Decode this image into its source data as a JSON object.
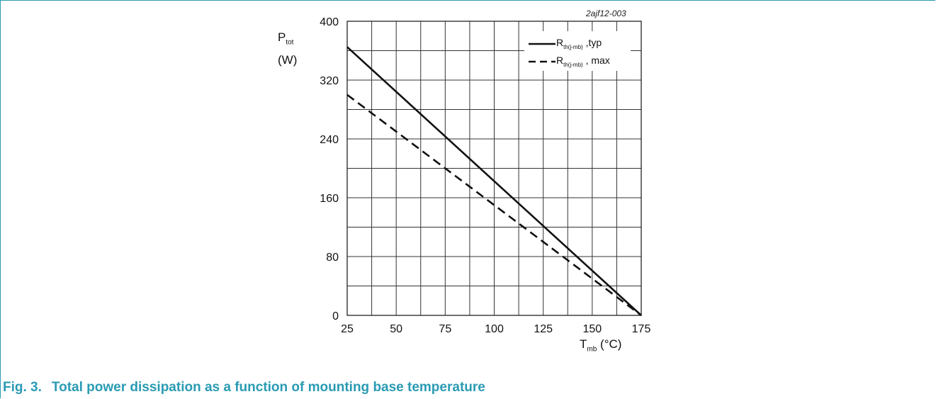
{
  "figure": {
    "id": "2ajf12-003",
    "caption_number": "Fig. 3.",
    "caption_text": "Total power dissipation as a function of mounting base temperature",
    "accent_color": "#2a9bb3"
  },
  "chart_data": {
    "type": "line",
    "title": "",
    "ylabel": {
      "symbol": "P",
      "subscript": "tot",
      "unit": "(W)"
    },
    "xlabel": {
      "symbol": "T",
      "subscript": "mb",
      "unit": "(°C)"
    },
    "xlim": [
      25,
      175
    ],
    "ylim": [
      0,
      400
    ],
    "xticks": [
      25,
      50,
      75,
      100,
      125,
      150,
      175
    ],
    "yticks": [
      0,
      80,
      160,
      240,
      320,
      400
    ],
    "grid": true,
    "legend": "top-right",
    "series": [
      {
        "name": "R",
        "name_sub": "th(j-mb)",
        "name_suffix": " ,typ",
        "style": "solid",
        "x": [
          25,
          175
        ],
        "y": [
          365,
          0
        ]
      },
      {
        "name": "R",
        "name_sub": "th(j-mb)",
        "name_suffix": " , max",
        "style": "dashed",
        "x": [
          25,
          175
        ],
        "y": [
          300,
          0
        ]
      }
    ]
  }
}
